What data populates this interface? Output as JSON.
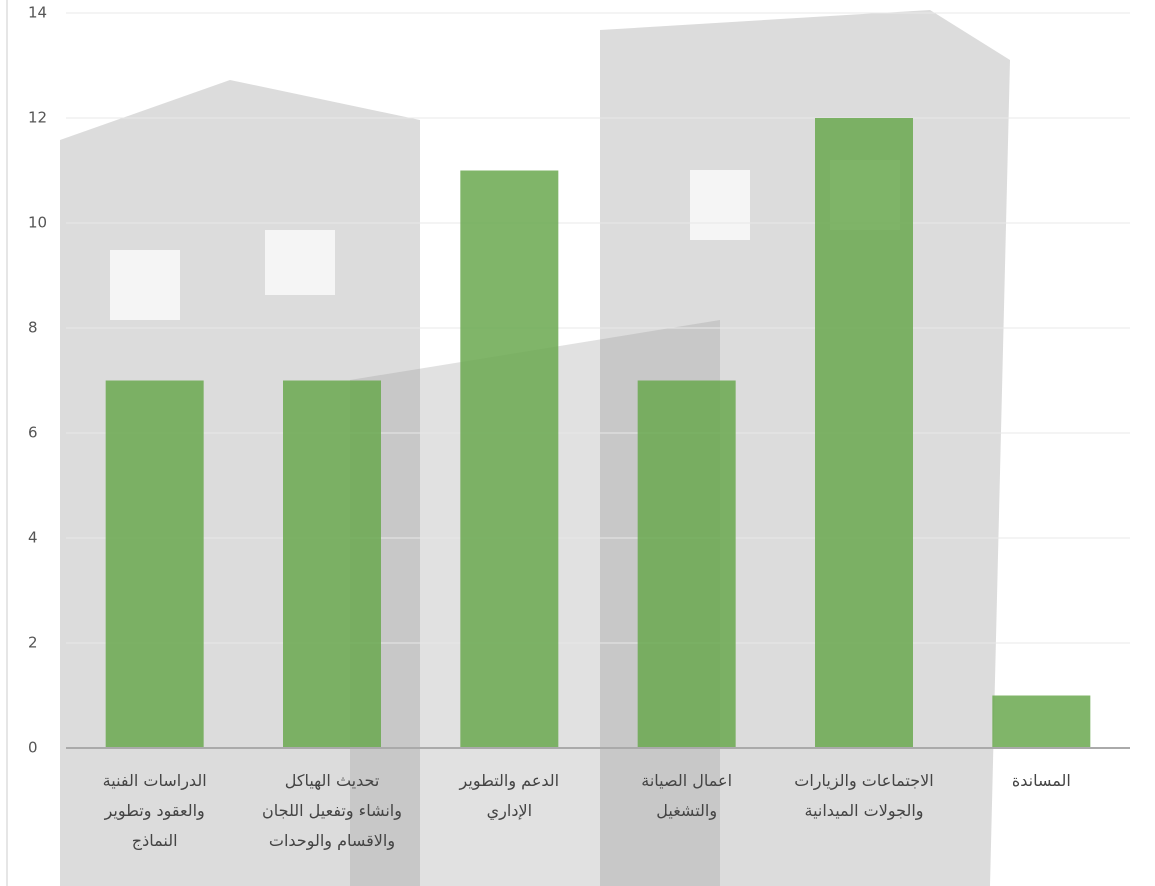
{
  "chart_data": {
    "type": "bar",
    "categories": [
      "الدراسات الفنية\nوالعقود وتطوير\nالنماذج",
      "تحديث الهياكل\nوانشاء وتفعيل اللجان\nوالاقسام والوحدات",
      "الدعم والتطوير\nالإداري",
      "اعمال الصيانة\nوالتشغيل",
      "الاجتماعات والزيارات\nوالجولات الميدانية",
      "المساندة"
    ],
    "values": [
      7,
      7,
      11,
      7,
      12,
      1
    ],
    "color": "#6aa84f",
    "ylim": [
      0,
      14
    ],
    "yticks": [
      0,
      2,
      4,
      6,
      8,
      10,
      12,
      14
    ],
    "grid": true
  }
}
